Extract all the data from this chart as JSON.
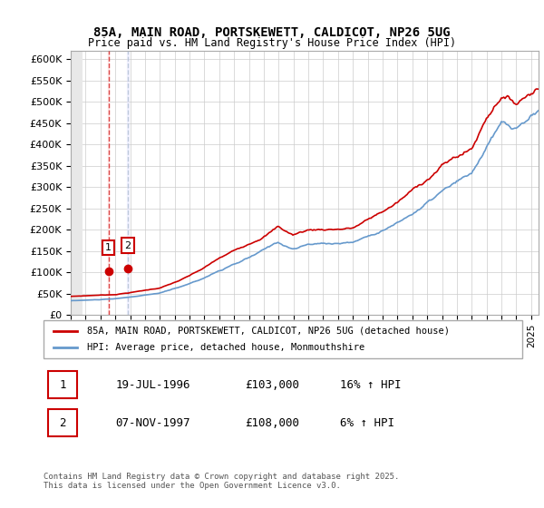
{
  "title1": "85A, MAIN ROAD, PORTSKEWETT, CALDICOT, NP26 5UG",
  "title2": "Price paid vs. HM Land Registry's House Price Index (HPI)",
  "xlabel": "",
  "ylabel": "",
  "ylim": [
    0,
    620000
  ],
  "yticks": [
    0,
    50000,
    100000,
    150000,
    200000,
    250000,
    300000,
    350000,
    400000,
    450000,
    500000,
    550000,
    600000
  ],
  "ytick_labels": [
    "£0",
    "£50K",
    "£100K",
    "£150K",
    "£200K",
    "£250K",
    "£300K",
    "£350K",
    "£400K",
    "£450K",
    "£500K",
    "£550K",
    "£600K"
  ],
  "xlim_start": 1994.0,
  "xlim_end": 2025.5,
  "line1_color": "#cc0000",
  "line2_color": "#6699cc",
  "marker_color": "#cc0000",
  "purchase1_date": 1996.54,
  "purchase1_price": 103000,
  "purchase2_date": 1997.85,
  "purchase2_price": 108000,
  "legend1_label": "85A, MAIN ROAD, PORTSKEWETT, CALDICOT, NP26 5UG (detached house)",
  "legend2_label": "HPI: Average price, detached house, Monmouthshire",
  "table_row1": [
    "1",
    "19-JUL-1996",
    "£103,000",
    "16% ↑ HPI"
  ],
  "table_row2": [
    "2",
    "07-NOV-1997",
    "£108,000",
    "6% ↑ HPI"
  ],
  "footnote": "Contains HM Land Registry data © Crown copyright and database right 2025.\nThis data is licensed under the Open Government Licence v3.0.",
  "bg_hatch_color": "#dddddd",
  "grid_color": "#cccccc",
  "plot_bg": "#ffffff",
  "hatch_bg": "#f0f0f0"
}
